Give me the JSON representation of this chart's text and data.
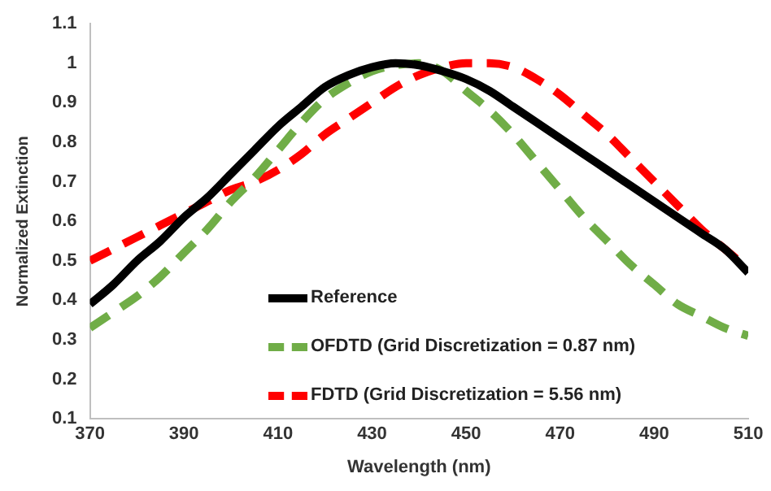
{
  "chart_data": {
    "type": "line",
    "xlabel": "Wavelength (nm)",
    "ylabel": "Normalized Extinction",
    "x": [
      370,
      375,
      380,
      385,
      390,
      395,
      400,
      405,
      410,
      415,
      420,
      425,
      430,
      435,
      440,
      445,
      450,
      455,
      460,
      465,
      470,
      475,
      480,
      485,
      490,
      495,
      500,
      505,
      510
    ],
    "series": [
      {
        "name": "Reference",
        "color": "#000000",
        "line_style": "solid",
        "values": [
          0.39,
          0.44,
          0.5,
          0.55,
          0.61,
          0.66,
          0.72,
          0.78,
          0.84,
          0.89,
          0.94,
          0.97,
          0.99,
          1.0,
          0.995,
          0.98,
          0.96,
          0.93,
          0.89,
          0.85,
          0.81,
          0.77,
          0.73,
          0.69,
          0.65,
          0.61,
          0.57,
          0.53,
          0.47
        ]
      },
      {
        "name": "OFDTD (Grid Discretization = 0.87 nm)",
        "color": "#70ad47",
        "line_style": "dashed",
        "values": [
          0.33,
          0.37,
          0.41,
          0.46,
          0.52,
          0.58,
          0.65,
          0.71,
          0.78,
          0.85,
          0.91,
          0.95,
          0.98,
          0.995,
          1.0,
          0.98,
          0.93,
          0.88,
          0.82,
          0.75,
          0.68,
          0.61,
          0.55,
          0.49,
          0.44,
          0.39,
          0.36,
          0.33,
          0.31
        ]
      },
      {
        "name": "FDTD (Grid Discretization = 5.56 nm)",
        "color": "#ff0000",
        "line_style": "dashed",
        "values": [
          0.5,
          0.53,
          0.56,
          0.59,
          0.62,
          0.65,
          0.68,
          0.7,
          0.73,
          0.77,
          0.82,
          0.86,
          0.9,
          0.94,
          0.97,
          0.99,
          1.0,
          1.0,
          0.99,
          0.96,
          0.92,
          0.87,
          0.82,
          0.76,
          0.7,
          0.64,
          0.58,
          0.53,
          0.48
        ]
      }
    ],
    "xlim": [
      370,
      510
    ],
    "xticks": [
      370,
      390,
      410,
      430,
      450,
      470,
      490,
      510
    ],
    "ylim": [
      0.1,
      1.1
    ],
    "yticks": [
      0.1,
      0.2,
      0.3,
      0.4,
      0.5,
      0.6,
      0.7,
      0.8,
      0.9,
      1,
      1.1
    ],
    "grid": false,
    "legend": "bottom",
    "marker": "none"
  }
}
